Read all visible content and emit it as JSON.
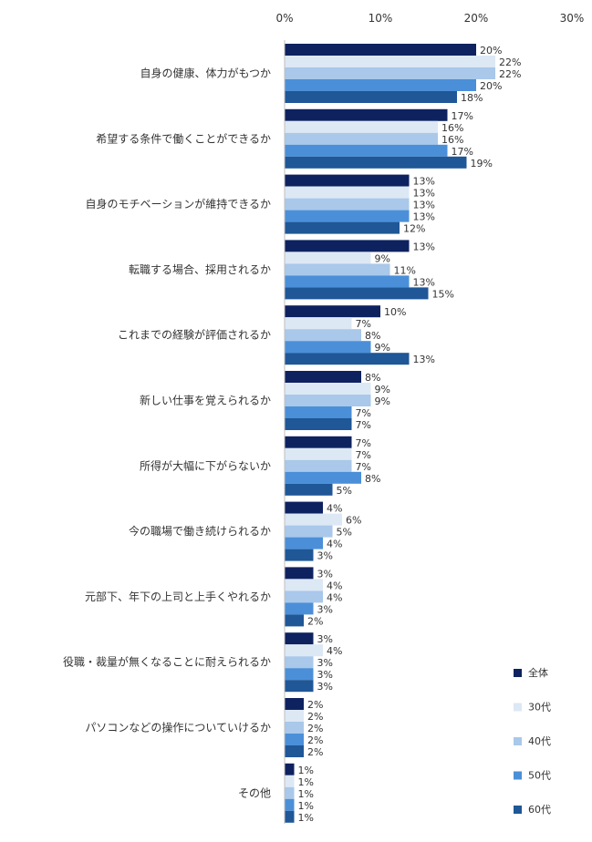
{
  "chart_data": {
    "type": "bar",
    "orientation": "horizontal",
    "title": "",
    "xlabel": "",
    "ylabel": "",
    "xlim": [
      0,
      30
    ],
    "x_ticks": [
      0,
      10,
      20,
      30
    ],
    "x_tick_labels": [
      "0%",
      "10%",
      "20%",
      "30%"
    ],
    "value_suffix": "%",
    "grid": false,
    "legend_position": "bottom-right",
    "categories": [
      "自身の健康、体力がもつか",
      "希望する条件で働くことができるか",
      "自身のモチベーションが維持できるか",
      "転職する場合、採用されるか",
      "これまでの経験が評価されるか",
      "新しい仕事を覚えられるか",
      "所得が大幅に下がらないか",
      "今の職場で働き続けられるか",
      "元部下、年下の上司と上手くやれるか",
      "役職・裁量が無くなることに耐えられるか",
      "パソコンなどの操作についていけるか",
      "その他"
    ],
    "series": [
      {
        "name": "全体",
        "color": "#0e2260",
        "values": [
          20,
          17,
          13,
          13,
          10,
          8,
          7,
          4,
          3,
          3,
          2,
          1
        ]
      },
      {
        "name": "30代",
        "color": "#dde8f5",
        "values": [
          22,
          16,
          13,
          9,
          7,
          9,
          7,
          6,
          4,
          4,
          2,
          1
        ]
      },
      {
        "name": "40代",
        "color": "#a9c8ea",
        "values": [
          22,
          16,
          13,
          11,
          8,
          9,
          7,
          5,
          4,
          3,
          2,
          1
        ]
      },
      {
        "name": "50代",
        "color": "#4b8fd8",
        "values": [
          20,
          17,
          13,
          13,
          9,
          7,
          8,
          4,
          3,
          3,
          2,
          1
        ]
      },
      {
        "name": "60代",
        "color": "#1f5797",
        "values": [
          18,
          19,
          12,
          15,
          13,
          7,
          5,
          3,
          2,
          3,
          2,
          1
        ]
      }
    ]
  }
}
